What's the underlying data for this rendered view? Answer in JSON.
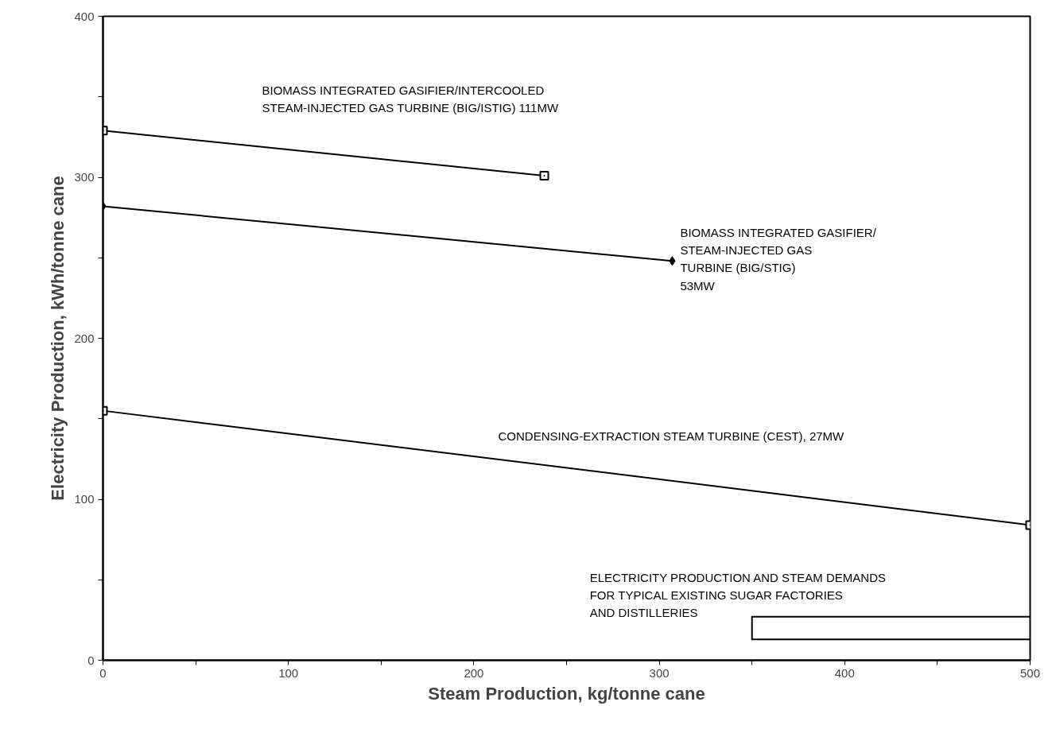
{
  "chart_data": {
    "type": "line",
    "xlabel": "Steam Production, kg/tonne cane",
    "ylabel": "Electricity Production, kWh/tonne cane",
    "xlim": [
      0,
      500
    ],
    "ylim": [
      0,
      400
    ],
    "xticks": [
      0,
      {
        "value": 50,
        "label": null
      },
      100,
      {
        "value": 150,
        "label": null
      },
      200,
      {
        "value": 250,
        "label": null
      },
      300,
      {
        "value": 350,
        "label": null
      },
      400,
      {
        "value": 450,
        "label": null
      },
      500
    ],
    "yticks": [
      0,
      {
        "value": 50,
        "label": null
      },
      100,
      {
        "value": 150,
        "label": null
      },
      200,
      {
        "value": 250,
        "label": null
      },
      300,
      {
        "value": 350,
        "label": null
      },
      400
    ],
    "grid": false,
    "line_style": "solid",
    "series": [
      {
        "name": "BIOMASS INTEGRATED GASIFIER/INTERCOOLED\nSTEAM-INJECTED GAS TURBINE (BIG/ISTIG) 111MW",
        "color": "#000000",
        "marker": "square",
        "x": [
          0,
          238
        ],
        "values": [
          329,
          301
        ]
      },
      {
        "name": "BIOMASS INTEGRATED GASIFIER/\nSTEAM-INJECTED GAS\nTURBINE (BIG/STIG)\n53MW",
        "color": "#000000",
        "marker": "diamond",
        "x": [
          0,
          307
        ],
        "values": [
          282,
          248
        ]
      },
      {
        "name": "CONDENSING-EXTRACTION STEAM TURBINE (CEST), 27MW",
        "color": "#000000",
        "marker": "square",
        "x": [
          0,
          500
        ],
        "values": [
          155,
          84
        ]
      },
      {
        "name": "ELECTRICITY PRODUCTION AND STEAM DEMANDS\nFOR TYPICAL EXISTING SUGAR FACTORIES\nAND DISTILLERIES",
        "color": "#000000",
        "marker": "none",
        "x": [
          500,
          350,
          350,
          500
        ],
        "values": [
          27,
          27,
          13,
          13
        ]
      }
    ]
  }
}
